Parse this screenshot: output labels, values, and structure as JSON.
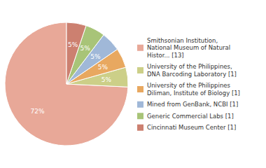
{
  "chart_data": {
    "type": "pie",
    "categories": [
      "Smithsonian Institution,\nNational Museum of Natural\nHistor... [13]",
      "University of the Philippines,\nDNA Barcoding Laboratory [1]",
      "University of the Philippines\nDiliman, Institute of Biology [1]",
      "Mined from GenBank, NCBI [1]",
      "Generic Commercial Labs [1]",
      "Cincinnati Museum Center [1]"
    ],
    "values": [
      72,
      5,
      5,
      5,
      5,
      5
    ],
    "value_labels": [
      "72%",
      "5%",
      "5%",
      "5%",
      "5%",
      "5%"
    ],
    "colors": [
      "#e8a898",
      "#cccf88",
      "#e8a860",
      "#a0b8d8",
      "#a8c478",
      "#cc8070"
    ],
    "data_labels": true,
    "legend": "right"
  }
}
